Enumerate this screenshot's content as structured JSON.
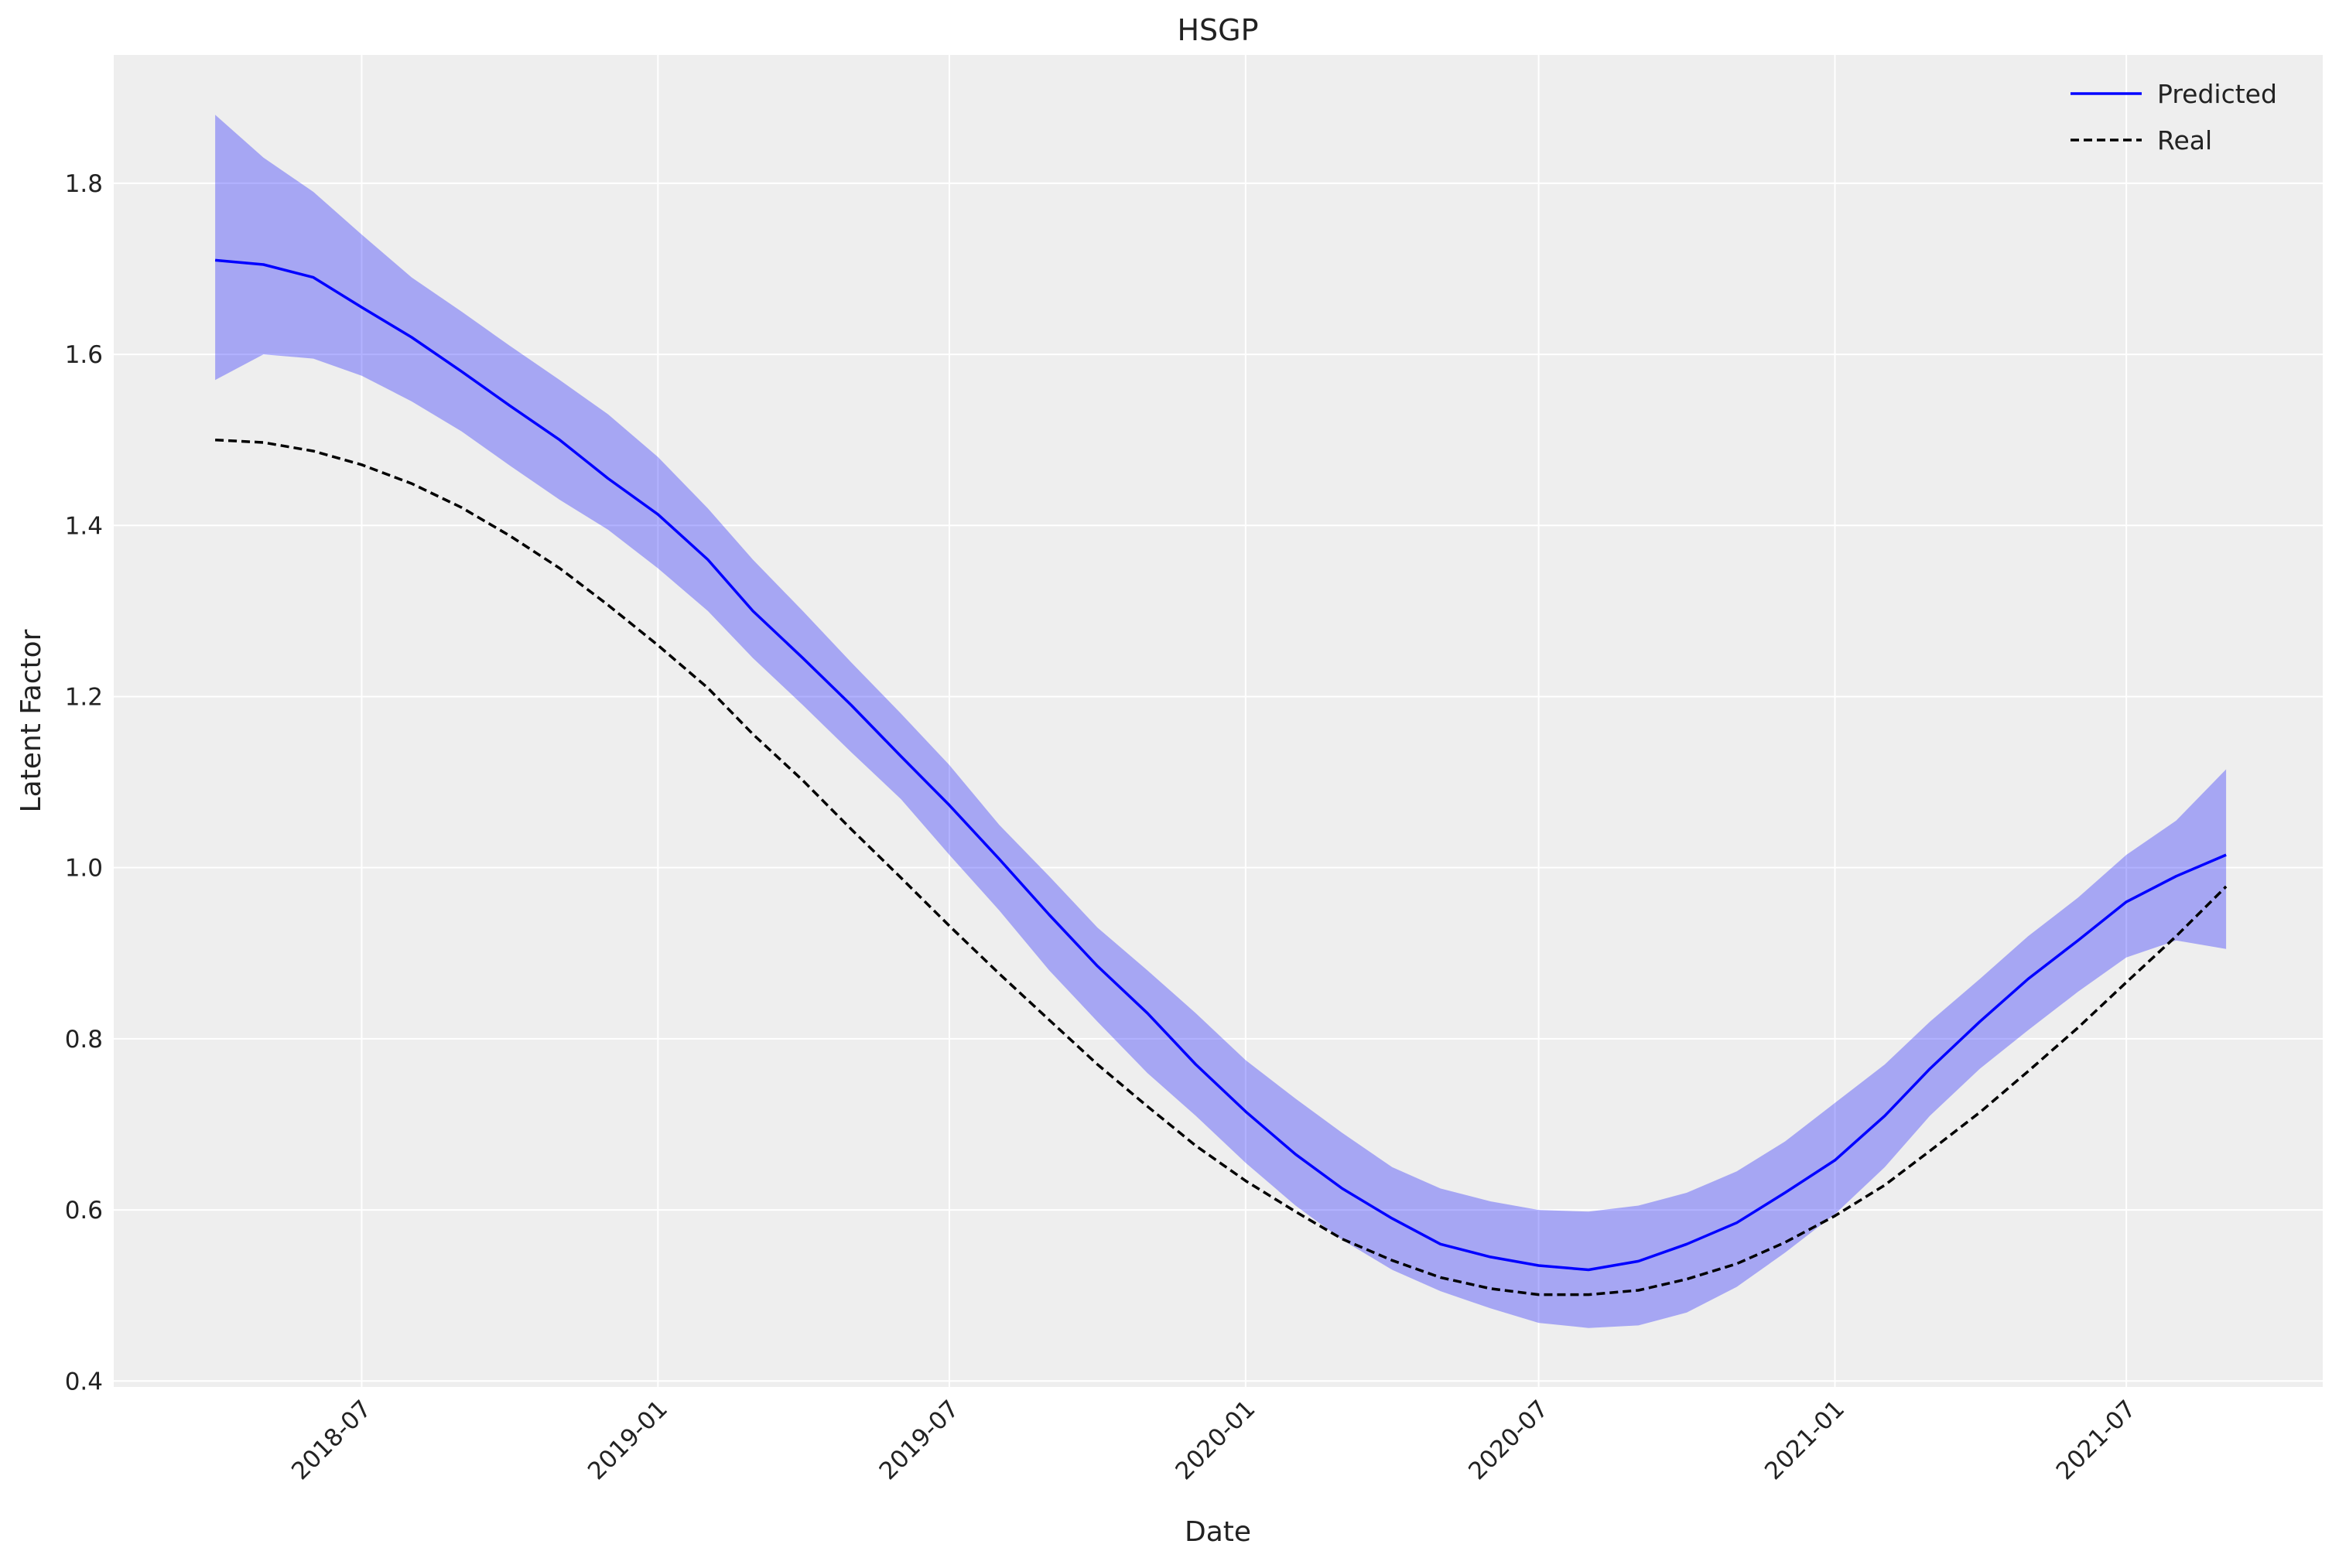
{
  "chart_data": {
    "type": "line",
    "title": "HSGP",
    "xlabel": "Date",
    "ylabel": "Latent Factor",
    "xlim": [
      "2018-01-28",
      "2021-10-31"
    ],
    "ylim": [
      0.393,
      1.95
    ],
    "grid": true,
    "legend_placement": "top-right",
    "x_ticks": [
      "2018-07",
      "2019-01",
      "2019-07",
      "2020-01",
      "2020-07",
      "2021-01",
      "2021-07"
    ],
    "y_ticks": [
      "0.4",
      "0.6",
      "0.8",
      "1.0",
      "1.2",
      "1.4",
      "1.6",
      "1.8"
    ],
    "x": [
      "2018-04-01",
      "2018-05-01",
      "2018-06-01",
      "2018-07-01",
      "2018-08-01",
      "2018-09-01",
      "2018-10-01",
      "2018-11-01",
      "2018-12-01",
      "2019-01-01",
      "2019-02-01",
      "2019-03-01",
      "2019-04-01",
      "2019-05-01",
      "2019-06-01",
      "2019-07-01",
      "2019-08-01",
      "2019-09-01",
      "2019-10-01",
      "2019-11-01",
      "2019-12-01",
      "2020-01-01",
      "2020-02-01",
      "2020-03-01",
      "2020-04-01",
      "2020-05-01",
      "2020-06-01",
      "2020-07-01",
      "2020-08-01",
      "2020-09-01",
      "2020-10-01",
      "2020-11-01",
      "2020-12-01",
      "2021-01-01",
      "2021-02-01",
      "2021-03-01",
      "2021-04-01",
      "2021-05-01",
      "2021-06-01",
      "2021-07-01",
      "2021-08-01",
      "2021-09-01"
    ],
    "series": [
      {
        "name": "Predicted",
        "color": "#0000ff",
        "style": "solid",
        "values": [
          1.71,
          1.705,
          1.69,
          1.655,
          1.62,
          1.58,
          1.54,
          1.5,
          1.455,
          1.413,
          1.36,
          1.3,
          1.245,
          1.19,
          1.13,
          1.073,
          1.01,
          0.945,
          0.885,
          0.83,
          0.77,
          0.715,
          0.665,
          0.625,
          0.59,
          0.56,
          0.545,
          0.535,
          0.53,
          0.54,
          0.56,
          0.585,
          0.62,
          0.658,
          0.71,
          0.765,
          0.82,
          0.87,
          0.915,
          0.96,
          0.99,
          1.015
        ]
      },
      {
        "name": "Real",
        "color": "#000000",
        "style": "dashed",
        "values": [
          1.5,
          1.497,
          1.487,
          1.471,
          1.449,
          1.421,
          1.388,
          1.35,
          1.307,
          1.26,
          1.21,
          1.156,
          1.102,
          1.045,
          0.988,
          0.932,
          0.876,
          0.822,
          0.77,
          0.721,
          0.675,
          0.634,
          0.598,
          0.566,
          0.541,
          0.521,
          0.508,
          0.501,
          0.501,
          0.506,
          0.519,
          0.537,
          0.562,
          0.593,
          0.629,
          0.669,
          0.714,
          0.762,
          0.813,
          0.866,
          0.92,
          0.978
        ]
      }
    ],
    "band": {
      "of": "Predicted",
      "color": "#0000ff",
      "opacity": 0.3,
      "upper": [
        1.88,
        1.83,
        1.79,
        1.74,
        1.69,
        1.65,
        1.61,
        1.57,
        1.53,
        1.48,
        1.42,
        1.36,
        1.3,
        1.24,
        1.18,
        1.12,
        1.05,
        0.99,
        0.93,
        0.88,
        0.83,
        0.775,
        0.73,
        0.69,
        0.65,
        0.625,
        0.61,
        0.6,
        0.598,
        0.605,
        0.62,
        0.645,
        0.68,
        0.725,
        0.77,
        0.82,
        0.87,
        0.92,
        0.965,
        1.015,
        1.055,
        1.115
      ],
      "lower": [
        1.57,
        1.6,
        1.595,
        1.575,
        1.545,
        1.51,
        1.47,
        1.43,
        1.395,
        1.35,
        1.3,
        1.245,
        1.19,
        1.135,
        1.08,
        1.015,
        0.95,
        0.88,
        0.82,
        0.76,
        0.71,
        0.655,
        0.605,
        0.565,
        0.53,
        0.505,
        0.485,
        0.468,
        0.462,
        0.465,
        0.48,
        0.51,
        0.55,
        0.595,
        0.65,
        0.71,
        0.765,
        0.81,
        0.855,
        0.895,
        0.915,
        0.905
      ]
    },
    "colors": {
      "plot_background": "#eeeeee",
      "grid": "#ffffff"
    }
  }
}
